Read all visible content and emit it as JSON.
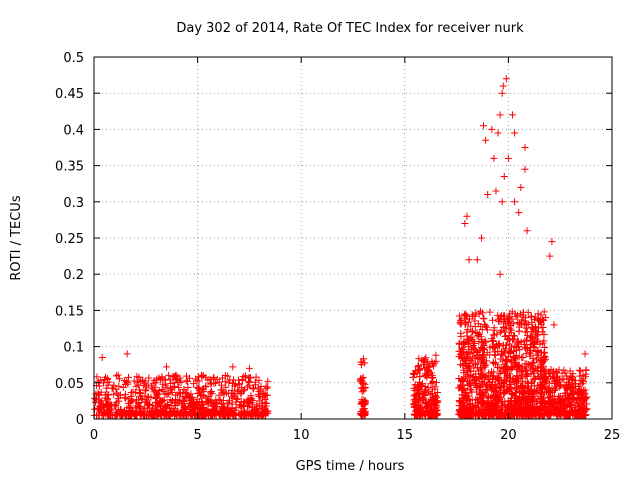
{
  "chart_data": {
    "type": "scatter",
    "title": "Day 302 of 2014, Rate Of TEC Index for receiver nurk",
    "xlabel": "GPS time / hours",
    "ylabel": "ROTI / TECUs",
    "xlim": [
      0,
      25
    ],
    "ylim": [
      0,
      0.5
    ],
    "x_ticks": [
      0,
      5,
      10,
      15,
      20,
      25
    ],
    "x_tick_labels": [
      "0",
      "5",
      "10",
      "15",
      "20",
      "25"
    ],
    "y_ticks": [
      0,
      0.05,
      0.1,
      0.15,
      0.2,
      0.25,
      0.3,
      0.35,
      0.4,
      0.45,
      0.5
    ],
    "y_tick_labels": [
      "0",
      "0.05",
      "0.1",
      "0.15",
      "0.2",
      "0.25",
      "0.3",
      "0.35",
      "0.4",
      "0.45",
      "0.5"
    ],
    "grid": true,
    "marker": "+",
    "series_color": "#ff0000",
    "series": [
      {
        "name": "ROTI",
        "clusters": [
          {
            "x_range": [
              0.0,
              8.4
            ],
            "y_base": 0.005,
            "y_typ": 0.035,
            "count": 900
          },
          {
            "x_range": [
              12.85,
              13.1
            ],
            "y_base": 0.005,
            "y_typ": 0.05,
            "count": 60
          },
          {
            "x_range": [
              15.4,
              16.6
            ],
            "y_base": 0.005,
            "y_typ": 0.05,
            "count": 250
          },
          {
            "x_range": [
              17.6,
              21.8
            ],
            "y_base": 0.005,
            "y_typ": 0.09,
            "count": 1300
          },
          {
            "x_range": [
              21.8,
              23.8
            ],
            "y_base": 0.005,
            "y_typ": 0.04,
            "count": 350
          }
        ],
        "notable_points": [
          [
            0.4,
            0.085
          ],
          [
            1.6,
            0.09
          ],
          [
            3.5,
            0.072
          ],
          [
            6.7,
            0.072
          ],
          [
            7.5,
            0.07
          ],
          [
            16.5,
            0.088
          ],
          [
            17.9,
            0.27
          ],
          [
            18.0,
            0.28
          ],
          [
            18.1,
            0.22
          ],
          [
            18.5,
            0.22
          ],
          [
            18.8,
            0.405
          ],
          [
            18.9,
            0.385
          ],
          [
            19.2,
            0.4
          ],
          [
            19.5,
            0.395
          ],
          [
            19.3,
            0.36
          ],
          [
            19.6,
            0.42
          ],
          [
            19.7,
            0.45
          ],
          [
            19.75,
            0.46
          ],
          [
            19.9,
            0.47
          ],
          [
            19.8,
            0.335
          ],
          [
            19.7,
            0.3
          ],
          [
            20.2,
            0.42
          ],
          [
            20.3,
            0.395
          ],
          [
            20.0,
            0.36
          ],
          [
            20.8,
            0.375
          ],
          [
            20.8,
            0.345
          ],
          [
            20.6,
            0.32
          ],
          [
            19.0,
            0.31
          ],
          [
            19.4,
            0.315
          ],
          [
            20.3,
            0.3
          ],
          [
            20.5,
            0.285
          ],
          [
            18.7,
            0.25
          ],
          [
            19.6,
            0.2
          ],
          [
            20.9,
            0.26
          ],
          [
            22.1,
            0.245
          ],
          [
            22.0,
            0.225
          ],
          [
            22.2,
            0.13
          ],
          [
            23.7,
            0.09
          ]
        ]
      }
    ]
  }
}
